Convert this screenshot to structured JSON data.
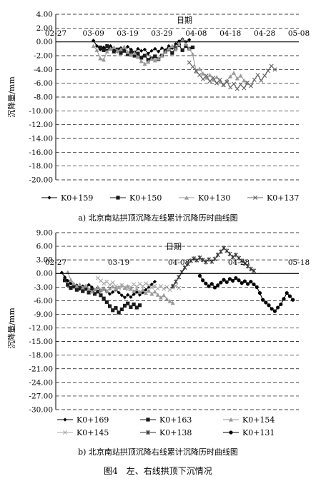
{
  "figure_caption": "图4　左、右线拱顶下沉情况",
  "chart_data": [
    {
      "type": "line",
      "title": "",
      "caption": "a) 北京南站拱顶沉降左线累计沉降历时曲线图",
      "xlabel": "日期",
      "ylabel": "沉降量/mm",
      "x_tick_labels": [
        "02-27",
        "03-09",
        "03-19",
        "03-29",
        "04-08",
        "04-18",
        "04-28",
        "05-08"
      ],
      "y_tick_labels": [
        "4.00",
        "2.00",
        "0.00",
        "-2.00",
        "-4.00",
        "-6.00",
        "-8.00",
        "-10.00",
        "-12.00",
        "-14.00",
        "-16.00",
        "-18.00",
        "-20.00"
      ],
      "xlim": [
        "02-27",
        "05-08"
      ],
      "ylim": [
        -20,
        4
      ],
      "legend_position": "bottom",
      "series": [
        {
          "name": "K0+159",
          "color": "#000000",
          "marker": "diamond",
          "x": [
            "03-09",
            "03-10",
            "03-11",
            "03-12",
            "03-13",
            "03-14",
            "03-15",
            "03-16",
            "03-17",
            "03-18",
            "03-19",
            "03-20",
            "03-21",
            "03-22",
            "03-23",
            "03-24",
            "03-25",
            "03-26",
            "03-27",
            "03-28",
            "03-29",
            "03-30",
            "03-31",
            "04-01",
            "04-02",
            "04-03",
            "04-04",
            "04-05",
            "04-06"
          ],
          "y": [
            0.2,
            -0.6,
            -1.1,
            -0.8,
            -1.2,
            -0.6,
            -1.0,
            -1.4,
            -0.9,
            -1.2,
            -0.7,
            -1.1,
            -1.5,
            -1.0,
            -1.3,
            -1.1,
            -1.7,
            -1.3,
            -1.0,
            -1.4,
            -0.9,
            -1.2,
            -0.6,
            -0.9,
            -0.3,
            0.1,
            0.4,
            0.0,
            0.3
          ]
        },
        {
          "name": "K0+150",
          "color": "#1a1a1a",
          "marker": "square",
          "x": [
            "03-11",
            "03-12",
            "03-13",
            "03-14",
            "03-15",
            "03-16",
            "03-17",
            "03-18",
            "03-19",
            "03-20",
            "03-21",
            "03-22",
            "03-23",
            "03-24",
            "03-25",
            "03-26",
            "03-27",
            "03-28",
            "03-29",
            "03-30",
            "03-31",
            "04-01",
            "04-02",
            "04-03",
            "04-04",
            "04-05",
            "04-06",
            "04-07"
          ],
          "y": [
            -0.8,
            -1.2,
            -0.6,
            -1.0,
            -1.4,
            -1.1,
            -1.6,
            -1.3,
            -1.8,
            -1.5,
            -2.0,
            -1.7,
            -2.3,
            -2.0,
            -2.6,
            -2.4,
            -2.1,
            -2.5,
            -2.0,
            -1.4,
            -1.1,
            -1.6,
            -0.9,
            -0.5,
            -1.2,
            -0.6,
            -1.0,
            -0.8
          ]
        },
        {
          "name": "K0+130",
          "color": "#999999",
          "marker": "triangle",
          "x": [
            "03-09",
            "03-10",
            "03-11",
            "03-12",
            "03-13",
            "03-14",
            "03-15",
            "03-16",
            "03-17",
            "03-18",
            "03-19",
            "03-20",
            "03-21",
            "03-22",
            "03-23",
            "03-24",
            "03-25",
            "03-26",
            "03-27",
            "03-28",
            "03-29",
            "03-30",
            "03-31",
            "04-01",
            "04-02",
            "04-03",
            "04-04",
            "04-05",
            "04-06",
            "04-07",
            "04-08",
            "04-09",
            "04-10",
            "04-11",
            "04-12",
            "04-13",
            "04-14",
            "04-15",
            "04-16",
            "04-17",
            "04-18",
            "04-19",
            "04-20",
            "04-21",
            "04-22",
            "04-23"
          ],
          "y": [
            -0.6,
            -1.2,
            -2.4,
            -2.6,
            -1.4,
            -1.0,
            -0.8,
            -1.3,
            -1.1,
            -0.7,
            -1.5,
            -1.9,
            -1.6,
            -2.2,
            -2.8,
            -3.2,
            -2.9,
            -2.5,
            -2.7,
            -2.4,
            -2.0,
            -1.5,
            -1.0,
            -0.6,
            -1.1,
            -0.4,
            0.3,
            -0.3,
            -1.0,
            -1.8,
            -4.3,
            -3.9,
            -4.6,
            -5.2,
            -4.8,
            -5.5,
            -5.1,
            -5.8,
            -6.2,
            -5.6,
            -5.0,
            -4.5,
            -5.3,
            -4.9,
            -5.6,
            -6.0
          ]
        },
        {
          "name": "K0+137",
          "color": "#666666",
          "marker": "x",
          "x": [
            "04-06",
            "04-07",
            "04-08",
            "04-09",
            "04-10",
            "04-11",
            "04-12",
            "04-13",
            "04-14",
            "04-15",
            "04-16",
            "04-17",
            "04-18",
            "04-19",
            "04-20",
            "04-21",
            "04-22",
            "04-23",
            "04-24",
            "04-25",
            "04-26",
            "04-27",
            "04-28",
            "04-29",
            "04-30",
            "05-01"
          ],
          "y": [
            -3.0,
            -3.6,
            -4.2,
            -4.8,
            -5.4,
            -4.9,
            -5.7,
            -5.2,
            -6.0,
            -5.5,
            -6.3,
            -5.8,
            -6.6,
            -6.1,
            -6.8,
            -6.2,
            -6.7,
            -5.9,
            -6.4,
            -5.5,
            -4.8,
            -5.6,
            -4.9,
            -4.2,
            -3.5,
            -4.0
          ]
        }
      ]
    },
    {
      "type": "line",
      "title": "",
      "caption": "b) 北京南站拱顶沉降右线累计沉降历时曲线图",
      "xlabel": "日期",
      "ylabel": "沉降量/mm",
      "x_tick_labels": [
        "02-27",
        "03-19",
        "04-08",
        "04-28",
        "05-18"
      ],
      "y_tick_labels": [
        "9.00",
        "6.00",
        "3.00",
        "0.00",
        "-3.00",
        "-6.00",
        "-9.00",
        "-12.00",
        "-15.00",
        "-18.00",
        "-21.00",
        "-24.00",
        "-27.00",
        "-30.00"
      ],
      "xlim": [
        "02-27",
        "05-18"
      ],
      "ylim": [
        -30,
        9
      ],
      "legend_position": "bottom",
      "series": [
        {
          "name": "K0+169",
          "color": "#000000",
          "marker": "diamond",
          "x": [
            "02-29",
            "03-01",
            "03-02",
            "03-03",
            "03-04",
            "03-05",
            "03-06",
            "03-07",
            "03-08",
            "03-09",
            "03-10",
            "03-11",
            "03-12",
            "03-13",
            "03-14",
            "03-15",
            "03-16",
            "03-17",
            "03-18",
            "03-19",
            "03-20",
            "03-21",
            "03-22",
            "03-23",
            "03-24",
            "03-25",
            "03-26",
            "03-27",
            "03-28",
            "03-29",
            "03-30",
            "03-31"
          ],
          "y": [
            0.2,
            -0.8,
            -1.6,
            -2.2,
            -3.0,
            -2.6,
            -3.4,
            -2.8,
            -3.2,
            -2.5,
            -3.0,
            -3.6,
            -3.1,
            -3.8,
            -3.4,
            -4.0,
            -4.5,
            -4.1,
            -3.6,
            -4.2,
            -4.8,
            -5.3,
            -4.7,
            -5.2,
            -4.6,
            -4.1,
            -4.7,
            -4.2,
            -3.6,
            -3.0,
            -2.4,
            -1.8
          ]
        },
        {
          "name": "K0+163",
          "color": "#1a1a1a",
          "marker": "square",
          "x": [
            "03-01",
            "03-02",
            "03-03",
            "03-04",
            "03-05",
            "03-06",
            "03-07",
            "03-08",
            "03-09",
            "03-10",
            "03-11",
            "03-12",
            "03-13",
            "03-14",
            "03-15",
            "03-16",
            "03-17",
            "03-18",
            "03-19",
            "03-20",
            "03-21",
            "03-22",
            "03-23",
            "03-24",
            "03-25",
            "03-26"
          ],
          "y": [
            -1.5,
            -2.5,
            -3.2,
            -2.8,
            -3.6,
            -3.1,
            -3.9,
            -3.4,
            -4.2,
            -3.7,
            -4.5,
            -4.0,
            -4.8,
            -5.5,
            -6.3,
            -7.2,
            -8.1,
            -7.6,
            -8.6,
            -7.9,
            -7.1,
            -6.6,
            -7.4,
            -6.8,
            -7.5,
            -7.0
          ]
        },
        {
          "name": "K0+154",
          "color": "#999999",
          "marker": "triangle",
          "x": [
            "03-02",
            "03-03",
            "03-04",
            "03-05",
            "03-06",
            "03-07",
            "03-08",
            "03-09",
            "03-10",
            "03-11",
            "03-12",
            "03-13",
            "03-14",
            "03-15",
            "03-16",
            "03-17",
            "03-18",
            "03-19",
            "03-20",
            "03-21",
            "03-22",
            "03-23",
            "03-24",
            "03-25",
            "03-26",
            "03-27",
            "03-28",
            "03-29",
            "03-30",
            "03-31",
            "04-01",
            "04-02",
            "04-03",
            "04-04",
            "04-05",
            "04-06"
          ],
          "y": [
            0.3,
            -1.4,
            -2.2,
            -2.8,
            -2.4,
            -3.1,
            -2.7,
            -3.4,
            -4.0,
            -3.5,
            -3.0,
            -3.6,
            -3.2,
            -3.8,
            -3.3,
            -2.9,
            -3.4,
            -3.0,
            -2.6,
            -3.2,
            -2.8,
            -3.4,
            -3.9,
            -3.5,
            -4.1,
            -3.6,
            -4.3,
            -3.8,
            -4.5,
            -4.0,
            -4.7,
            -5.3,
            -4.8,
            -5.6,
            -6.1,
            -6.5
          ]
        },
        {
          "name": "K0+145",
          "color": "#aaaaaa",
          "marker": "x",
          "x": [
            "03-12",
            "03-13",
            "03-14",
            "03-15",
            "03-16",
            "03-17",
            "03-18",
            "03-19",
            "03-20",
            "03-21",
            "03-22",
            "03-23",
            "03-24",
            "03-25",
            "03-26",
            "03-27",
            "03-28",
            "03-29",
            "03-30",
            "03-31",
            "04-01",
            "04-02",
            "04-03",
            "04-04",
            "04-05",
            "04-06",
            "04-07",
            "04-08"
          ],
          "y": [
            -1.0,
            -1.6,
            -2.2,
            -1.8,
            -2.5,
            -2.0,
            -2.8,
            -3.2,
            -2.6,
            -3.0,
            -3.5,
            -3.0,
            -2.4,
            -2.9,
            -2.3,
            -2.8,
            -2.2,
            -2.6,
            -3.1,
            -2.7,
            -3.3,
            -2.8,
            -3.4,
            -3.0,
            -3.6,
            -3.1,
            -2.7,
            -3.2
          ]
        },
        {
          "name": "K0+138",
          "color": "#333333",
          "marker": "star",
          "x": [
            "04-06",
            "04-07",
            "04-08",
            "04-09",
            "04-10",
            "04-11",
            "04-12",
            "04-13",
            "04-14",
            "04-15",
            "04-16",
            "04-17",
            "04-18",
            "04-19",
            "04-20",
            "04-21",
            "04-22",
            "04-23",
            "04-24",
            "04-25",
            "04-26",
            "04-27",
            "04-28",
            "04-29",
            "04-30",
            "05-01",
            "05-02",
            "05-03"
          ],
          "y": [
            -2.8,
            -1.8,
            -0.8,
            0.3,
            1.3,
            2.1,
            2.8,
            3.3,
            2.9,
            3.5,
            3.0,
            2.5,
            3.1,
            2.6,
            3.2,
            4.1,
            4.8,
            5.6,
            5.0,
            4.3,
            3.6,
            4.1,
            3.4,
            2.8,
            2.2,
            1.6,
            1.0,
            0.6
          ]
        },
        {
          "name": "K0+131",
          "color": "#000000",
          "marker": "circle",
          "x": [
            "04-15",
            "04-16",
            "04-17",
            "04-18",
            "04-19",
            "04-20",
            "04-21",
            "04-22",
            "04-23",
            "04-24",
            "04-25",
            "04-26",
            "04-27",
            "04-28",
            "04-29",
            "04-30",
            "05-01",
            "05-02",
            "05-03",
            "05-04",
            "05-05",
            "05-06",
            "05-07",
            "05-08",
            "05-09",
            "05-10",
            "05-11",
            "05-12",
            "05-13",
            "05-14",
            "05-15",
            "05-16"
          ],
          "y": [
            -0.5,
            -1.5,
            -2.2,
            -2.8,
            -2.3,
            -3.1,
            -2.6,
            -2.0,
            -1.4,
            -1.9,
            -1.2,
            -1.6,
            -1.0,
            -1.5,
            -2.1,
            -1.7,
            -2.3,
            -1.8,
            -2.4,
            -3.0,
            -4.3,
            -5.8,
            -6.4,
            -7.0,
            -7.8,
            -8.3,
            -7.5,
            -6.8,
            -5.6,
            -4.3,
            -5.0,
            -5.8
          ]
        }
      ]
    }
  ]
}
